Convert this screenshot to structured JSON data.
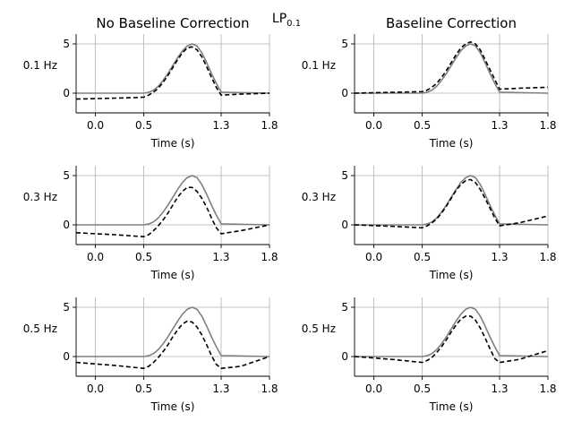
{
  "figure": {
    "suptitle_main": "LP",
    "suptitle_sub": "0.1"
  },
  "chart_data": [
    {
      "type": "line",
      "title": "No Baseline Correction",
      "ylabel": "0.1 Hz",
      "xlabel": "Time (s)",
      "xlim": [
        -0.2,
        1.8
      ],
      "ylim": [
        -2,
        6
      ],
      "xticks": [
        "0.0",
        "0.5",
        "1.3",
        "1.8"
      ],
      "yticks": [
        "0",
        "5"
      ],
      "grid": true,
      "series": [
        {
          "style": "solid",
          "color": "#808080",
          "x": [
            -0.2,
            0.5,
            0.55,
            0.6,
            0.65,
            0.7,
            0.75,
            0.8,
            0.85,
            0.9,
            0.95,
            1.0,
            1.05,
            1.1,
            1.15,
            1.2,
            1.25,
            1.3,
            1.8
          ],
          "y": [
            0,
            0,
            0.08,
            0.3,
            0.7,
            1.3,
            2.0,
            2.8,
            3.6,
            4.3,
            4.8,
            5.0,
            4.8,
            4.1,
            3.1,
            2.0,
            1.0,
            0.1,
            0
          ]
        },
        {
          "style": "dashed",
          "color": "#000000",
          "x": [
            -0.2,
            0.4,
            0.5,
            0.55,
            0.6,
            0.65,
            0.7,
            0.75,
            0.8,
            0.85,
            0.9,
            0.95,
            1.0,
            1.05,
            1.1,
            1.15,
            1.2,
            1.25,
            1.3,
            1.5,
            1.8
          ],
          "y": [
            -0.6,
            -0.45,
            -0.4,
            -0.2,
            0.1,
            0.5,
            1.1,
            1.8,
            2.6,
            3.4,
            4.1,
            4.6,
            4.7,
            4.4,
            3.7,
            2.7,
            1.6,
            0.6,
            -0.2,
            -0.1,
            0
          ]
        }
      ]
    },
    {
      "type": "line",
      "title": "Baseline Correction",
      "ylabel": "0.1 Hz",
      "xlabel": "Time (s)",
      "xlim": [
        -0.2,
        1.8
      ],
      "ylim": [
        -2,
        6
      ],
      "xticks": [
        "0.0",
        "0.5",
        "1.3",
        "1.8"
      ],
      "yticks": [
        "0",
        "5"
      ],
      "grid": true,
      "series": [
        {
          "style": "solid",
          "color": "#808080",
          "x": [
            -0.2,
            0.5,
            0.55,
            0.6,
            0.65,
            0.7,
            0.75,
            0.8,
            0.85,
            0.9,
            0.95,
            1.0,
            1.05,
            1.1,
            1.15,
            1.2,
            1.25,
            1.3,
            1.8
          ],
          "y": [
            0,
            0,
            0.08,
            0.3,
            0.7,
            1.3,
            2.0,
            2.8,
            3.6,
            4.3,
            4.8,
            5.0,
            4.8,
            4.1,
            3.1,
            2.0,
            1.0,
            0.1,
            0
          ]
        },
        {
          "style": "dashed",
          "color": "#000000",
          "x": [
            -0.2,
            0.5,
            0.55,
            0.6,
            0.65,
            0.7,
            0.75,
            0.8,
            0.85,
            0.9,
            0.95,
            1.0,
            1.05,
            1.1,
            1.15,
            1.2,
            1.25,
            1.3,
            1.5,
            1.8
          ],
          "y": [
            0,
            0.15,
            0.3,
            0.6,
            1.0,
            1.6,
            2.3,
            3.1,
            3.9,
            4.6,
            5.0,
            5.2,
            5.0,
            4.4,
            3.4,
            2.4,
            1.4,
            0.4,
            0.5,
            0.6
          ]
        }
      ]
    },
    {
      "type": "line",
      "title": "",
      "ylabel": "0.3 Hz",
      "xlabel": "Time (s)",
      "xlim": [
        -0.2,
        1.8
      ],
      "ylim": [
        -2,
        6
      ],
      "xticks": [
        "0.0",
        "0.5",
        "1.3",
        "1.8"
      ],
      "yticks": [
        "0",
        "5"
      ],
      "grid": true,
      "series": [
        {
          "style": "solid",
          "color": "#808080",
          "x": [
            -0.2,
            0.5,
            0.55,
            0.6,
            0.65,
            0.7,
            0.75,
            0.8,
            0.85,
            0.9,
            0.95,
            1.0,
            1.05,
            1.1,
            1.15,
            1.2,
            1.25,
            1.3,
            1.8
          ],
          "y": [
            0,
            0,
            0.08,
            0.3,
            0.7,
            1.3,
            2.0,
            2.8,
            3.6,
            4.3,
            4.8,
            5.0,
            4.8,
            4.1,
            3.1,
            2.0,
            1.0,
            0.1,
            0
          ]
        },
        {
          "style": "dashed",
          "color": "#000000",
          "x": [
            -0.2,
            0.2,
            0.5,
            0.55,
            0.6,
            0.65,
            0.7,
            0.75,
            0.8,
            0.85,
            0.9,
            0.95,
            1.0,
            1.05,
            1.1,
            1.15,
            1.2,
            1.25,
            1.3,
            1.5,
            1.8
          ],
          "y": [
            -0.8,
            -1.0,
            -1.2,
            -1.0,
            -0.6,
            -0.1,
            0.5,
            1.2,
            2.0,
            2.8,
            3.4,
            3.8,
            3.8,
            3.4,
            2.7,
            1.8,
            0.7,
            -0.3,
            -0.9,
            -0.6,
            0
          ]
        }
      ]
    },
    {
      "type": "line",
      "title": "",
      "ylabel": "0.3 Hz",
      "xlabel": "Time (s)",
      "xlim": [
        -0.2,
        1.8
      ],
      "ylim": [
        -2,
        6
      ],
      "xticks": [
        "0.0",
        "0.5",
        "1.3",
        "1.8"
      ],
      "yticks": [
        "0",
        "5"
      ],
      "grid": true,
      "series": [
        {
          "style": "solid",
          "color": "#808080",
          "x": [
            -0.2,
            0.5,
            0.55,
            0.6,
            0.65,
            0.7,
            0.75,
            0.8,
            0.85,
            0.9,
            0.95,
            1.0,
            1.05,
            1.1,
            1.15,
            1.2,
            1.25,
            1.3,
            1.8
          ],
          "y": [
            0,
            0,
            0.08,
            0.3,
            0.7,
            1.3,
            2.0,
            2.8,
            3.6,
            4.3,
            4.8,
            5.0,
            4.8,
            4.1,
            3.1,
            2.0,
            1.0,
            0.1,
            0
          ]
        },
        {
          "style": "dashed",
          "color": "#000000",
          "x": [
            -0.2,
            0.2,
            0.5,
            0.55,
            0.6,
            0.65,
            0.7,
            0.75,
            0.8,
            0.85,
            0.9,
            0.95,
            1.0,
            1.05,
            1.1,
            1.15,
            1.2,
            1.25,
            1.3,
            1.5,
            1.8
          ],
          "y": [
            0,
            -0.15,
            -0.3,
            -0.1,
            0.2,
            0.6,
            1.2,
            1.9,
            2.7,
            3.5,
            4.1,
            4.5,
            4.6,
            4.3,
            3.6,
            2.7,
            1.7,
            0.7,
            -0.1,
            0.2,
            0.9
          ]
        }
      ]
    },
    {
      "type": "line",
      "title": "",
      "ylabel": "0.5 Hz",
      "xlabel": "Time (s)",
      "xlim": [
        -0.2,
        1.8
      ],
      "ylim": [
        -2,
        6
      ],
      "xticks": [
        "0.0",
        "0.5",
        "1.3",
        "1.8"
      ],
      "yticks": [
        "0",
        "5"
      ],
      "grid": true,
      "series": [
        {
          "style": "solid",
          "color": "#808080",
          "x": [
            -0.2,
            0.5,
            0.55,
            0.6,
            0.65,
            0.7,
            0.75,
            0.8,
            0.85,
            0.9,
            0.95,
            1.0,
            1.05,
            1.1,
            1.15,
            1.2,
            1.25,
            1.3,
            1.8
          ],
          "y": [
            0,
            0,
            0.08,
            0.3,
            0.7,
            1.3,
            2.0,
            2.8,
            3.6,
            4.3,
            4.8,
            5.0,
            4.8,
            4.1,
            3.1,
            2.0,
            1.0,
            0.1,
            0
          ]
        },
        {
          "style": "dashed",
          "color": "#000000",
          "x": [
            -0.2,
            0.2,
            0.5,
            0.55,
            0.6,
            0.65,
            0.7,
            0.75,
            0.8,
            0.85,
            0.9,
            0.95,
            1.0,
            1.05,
            1.1,
            1.15,
            1.2,
            1.25,
            1.3,
            1.5,
            1.8
          ],
          "y": [
            -0.6,
            -0.9,
            -1.2,
            -1.0,
            -0.6,
            -0.1,
            0.5,
            1.2,
            2.0,
            2.7,
            3.3,
            3.6,
            3.5,
            3.0,
            2.2,
            1.2,
            0.1,
            -0.8,
            -1.2,
            -1.0,
            0
          ]
        }
      ]
    },
    {
      "type": "line",
      "title": "",
      "ylabel": "0.5 Hz",
      "xlabel": "Time (s)",
      "xlim": [
        -0.2,
        1.8
      ],
      "ylim": [
        -2,
        6
      ],
      "xticks": [
        "0.0",
        "0.5",
        "1.3",
        "1.8"
      ],
      "yticks": [
        "0",
        "5"
      ],
      "grid": true,
      "series": [
        {
          "style": "solid",
          "color": "#808080",
          "x": [
            -0.2,
            0.5,
            0.55,
            0.6,
            0.65,
            0.7,
            0.75,
            0.8,
            0.85,
            0.9,
            0.95,
            1.0,
            1.05,
            1.1,
            1.15,
            1.2,
            1.25,
            1.3,
            1.8
          ],
          "y": [
            0,
            0,
            0.08,
            0.3,
            0.7,
            1.3,
            2.0,
            2.8,
            3.6,
            4.3,
            4.8,
            5.0,
            4.8,
            4.1,
            3.1,
            2.0,
            1.0,
            0.1,
            0
          ]
        },
        {
          "style": "dashed",
          "color": "#000000",
          "x": [
            -0.2,
            0.2,
            0.5,
            0.55,
            0.6,
            0.65,
            0.7,
            0.75,
            0.8,
            0.85,
            0.9,
            0.95,
            1.0,
            1.05,
            1.1,
            1.15,
            1.2,
            1.25,
            1.3,
            1.5,
            1.8
          ],
          "y": [
            0,
            -0.3,
            -0.6,
            -0.4,
            -0.1,
            0.4,
            1.0,
            1.7,
            2.5,
            3.2,
            3.8,
            4.1,
            4.1,
            3.7,
            2.9,
            1.9,
            0.8,
            -0.2,
            -0.6,
            -0.3,
            0.6
          ]
        }
      ]
    }
  ]
}
